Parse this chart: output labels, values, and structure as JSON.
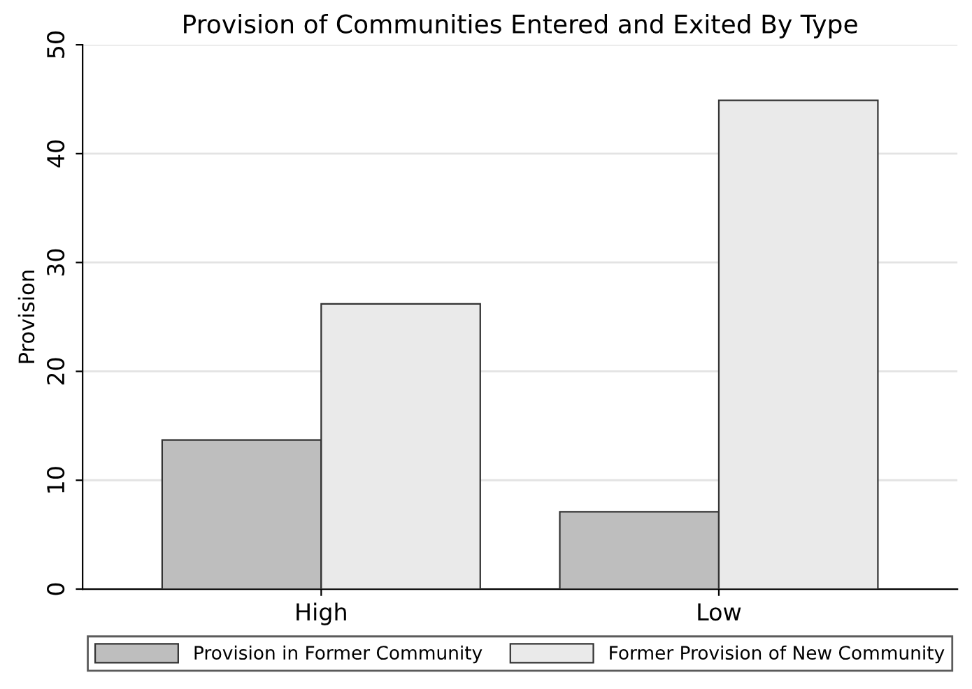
{
  "chart_data": {
    "type": "bar",
    "title": "Provision of Communities Entered and Exited By Type",
    "ylabel": "Provision",
    "categories": [
      "High",
      "Low"
    ],
    "series": [
      {
        "name": "Provision in Former Community",
        "color": "#bebebe",
        "values": [
          13.7,
          7.1
        ]
      },
      {
        "name": "Former Provision of New Community",
        "color": "#eaeaea",
        "values": [
          26.2,
          44.9
        ]
      }
    ],
    "ylim": [
      0,
      50
    ],
    "yticks": [
      0,
      10,
      20,
      30,
      40,
      50
    ],
    "grid": "y",
    "legend": "bottom"
  }
}
